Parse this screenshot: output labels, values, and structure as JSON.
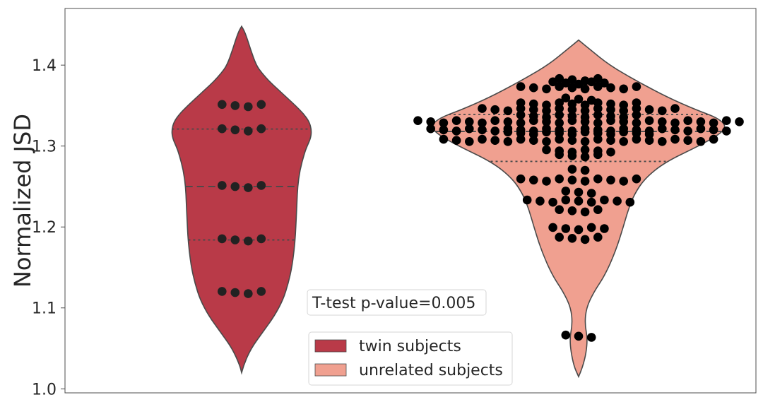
{
  "chart_data": {
    "type": "violin",
    "ylabel": "Normalized JSD",
    "ylim": [
      0.995,
      1.47
    ],
    "yticks": [
      1.0,
      1.1,
      1.2,
      1.3,
      1.4
    ],
    "ytick_labels": [
      "1.0",
      "1.1",
      "1.2",
      "1.3",
      "1.4"
    ],
    "grid": false,
    "annotation": "T-test p-value=0.005",
    "legend": {
      "placement": "bottom-center",
      "entries": [
        "twin subjects",
        "unrelated subjects"
      ]
    },
    "series": [
      {
        "name": "twin subjects",
        "color": "#b93a48",
        "quartiles": {
          "q1": 1.184,
          "median": 1.25,
          "q3": 1.321
        },
        "profile": [
          [
            1.02,
            0.0
          ],
          [
            1.03,
            0.03
          ],
          [
            1.05,
            0.13
          ],
          [
            1.07,
            0.29
          ],
          [
            1.09,
            0.45
          ],
          [
            1.11,
            0.57
          ],
          [
            1.13,
            0.64
          ],
          [
            1.15,
            0.69
          ],
          [
            1.17,
            0.72
          ],
          [
            1.19,
            0.74
          ],
          [
            1.21,
            0.75
          ],
          [
            1.23,
            0.76
          ],
          [
            1.25,
            0.77
          ],
          [
            1.27,
            0.8
          ],
          [
            1.29,
            0.86
          ],
          [
            1.3,
            0.9
          ],
          [
            1.31,
            0.95
          ],
          [
            1.32,
            0.96
          ],
          [
            1.33,
            0.93
          ],
          [
            1.34,
            0.85
          ],
          [
            1.35,
            0.74
          ],
          [
            1.36,
            0.62
          ],
          [
            1.37,
            0.5
          ],
          [
            1.38,
            0.38
          ],
          [
            1.39,
            0.28
          ],
          [
            1.4,
            0.2
          ],
          [
            1.42,
            0.12
          ],
          [
            1.44,
            0.05
          ],
          [
            1.448,
            0.0
          ]
        ],
        "rows": [
          {
            "y": 1.119,
            "n": 4
          },
          {
            "y": 1.184,
            "n": 4
          },
          {
            "y": 1.25,
            "n": 4
          },
          {
            "y": 1.32,
            "n": 4
          },
          {
            "y": 1.35,
            "n": 4
          }
        ]
      },
      {
        "name": "unrelated subjects",
        "color": "#f0a090",
        "quartiles": {
          "q1": 1.281,
          "median": 1.318,
          "q3": 1.339
        },
        "profile": [
          [
            1.015,
            0.0
          ],
          [
            1.03,
            0.035
          ],
          [
            1.06,
            0.06
          ],
          [
            1.08,
            0.04
          ],
          [
            1.1,
            0.05
          ],
          [
            1.12,
            0.1
          ],
          [
            1.14,
            0.17
          ],
          [
            1.17,
            0.24
          ],
          [
            1.2,
            0.29
          ],
          [
            1.22,
            0.32
          ],
          [
            1.24,
            0.36
          ],
          [
            1.26,
            0.43
          ],
          [
            1.28,
            0.56
          ],
          [
            1.3,
            0.78
          ],
          [
            1.315,
            0.92
          ],
          [
            1.325,
            0.96
          ],
          [
            1.335,
            0.9
          ],
          [
            1.345,
            0.76
          ],
          [
            1.36,
            0.58
          ],
          [
            1.38,
            0.38
          ],
          [
            1.4,
            0.2
          ],
          [
            1.42,
            0.07
          ],
          [
            1.431,
            0.0
          ]
        ],
        "rows": [
          {
            "y": 1.065,
            "n": 3
          },
          {
            "y": 1.186,
            "n": 4
          },
          {
            "y": 1.198,
            "n": 5
          },
          {
            "y": 1.22,
            "n": 4
          },
          {
            "y": 1.232,
            "n": 9
          },
          {
            "y": 1.243,
            "n": 3
          },
          {
            "y": 1.258,
            "n": 10
          },
          {
            "y": 1.27,
            "n": 2
          },
          {
            "y": 1.288,
            "n": 4
          },
          {
            "y": 1.294,
            "n": 6
          },
          {
            "y": 1.307,
            "n": 22
          },
          {
            "y": 1.316,
            "n": 12
          },
          {
            "y": 1.32,
            "n": 24
          },
          {
            "y": 1.33,
            "n": 26
          },
          {
            "y": 1.337,
            "n": 10
          },
          {
            "y": 1.345,
            "n": 16
          },
          {
            "y": 1.352,
            "n": 10
          },
          {
            "y": 1.358,
            "n": 3
          },
          {
            "y": 1.372,
            "n": 10
          },
          {
            "y": 1.378,
            "n": 5
          },
          {
            "y": 1.382,
            "n": 4
          }
        ]
      }
    ]
  }
}
